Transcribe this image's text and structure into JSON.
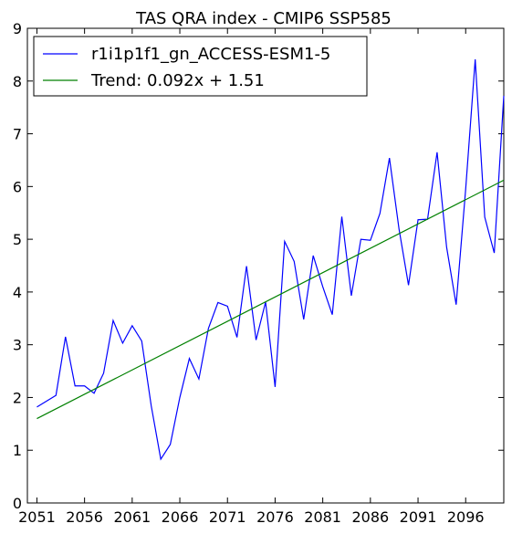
{
  "chart_data": {
    "type": "line",
    "title": "TAS QRA index - CMIP6 SSP585",
    "xlabel": "",
    "ylabel": "",
    "xlim": [
      2050,
      2100
    ],
    "ylim": [
      0,
      9
    ],
    "x_ticks": [
      2051,
      2056,
      2061,
      2066,
      2071,
      2076,
      2081,
      2086,
      2091,
      2096
    ],
    "y_ticks": [
      0,
      1,
      2,
      3,
      4,
      5,
      6,
      7,
      8,
      9
    ],
    "grid": false,
    "legend_position": "top-left",
    "series": [
      {
        "name": "r1i1p1f1_gn_ACCESS-ESM1-5",
        "color": "#0000ff",
        "x": [
          2051,
          2052,
          2053,
          2054,
          2055,
          2056,
          2057,
          2058,
          2059,
          2060,
          2061,
          2062,
          2063,
          2064,
          2065,
          2066,
          2067,
          2068,
          2069,
          2070,
          2071,
          2072,
          2073,
          2074,
          2075,
          2076,
          2077,
          2078,
          2079,
          2080,
          2081,
          2082,
          2083,
          2084,
          2085,
          2086,
          2087,
          2088,
          2089,
          2090,
          2091,
          2092,
          2093,
          2094,
          2095,
          2096,
          2097,
          2098,
          2099,
          2100
        ],
        "values": [
          1.82,
          1.93,
          2.04,
          3.15,
          2.22,
          2.22,
          2.08,
          2.46,
          3.46,
          3.03,
          3.36,
          3.07,
          1.84,
          0.83,
          1.11,
          2.0,
          2.74,
          2.35,
          3.31,
          3.8,
          3.73,
          3.14,
          4.49,
          3.09,
          3.81,
          2.2,
          4.96,
          4.58,
          3.48,
          4.69,
          4.1,
          3.57,
          5.43,
          3.93,
          5.0,
          4.98,
          5.49,
          6.54,
          5.2,
          4.13,
          5.37,
          5.38,
          6.65,
          4.85,
          3.76,
          5.95,
          8.41,
          5.42,
          4.74,
          7.72
        ]
      },
      {
        "name": "Trend: 0.092x + 1.51",
        "color": "#008000",
        "x": [
          2051,
          2100
        ],
        "values": [
          1.6,
          6.12
        ]
      }
    ]
  }
}
